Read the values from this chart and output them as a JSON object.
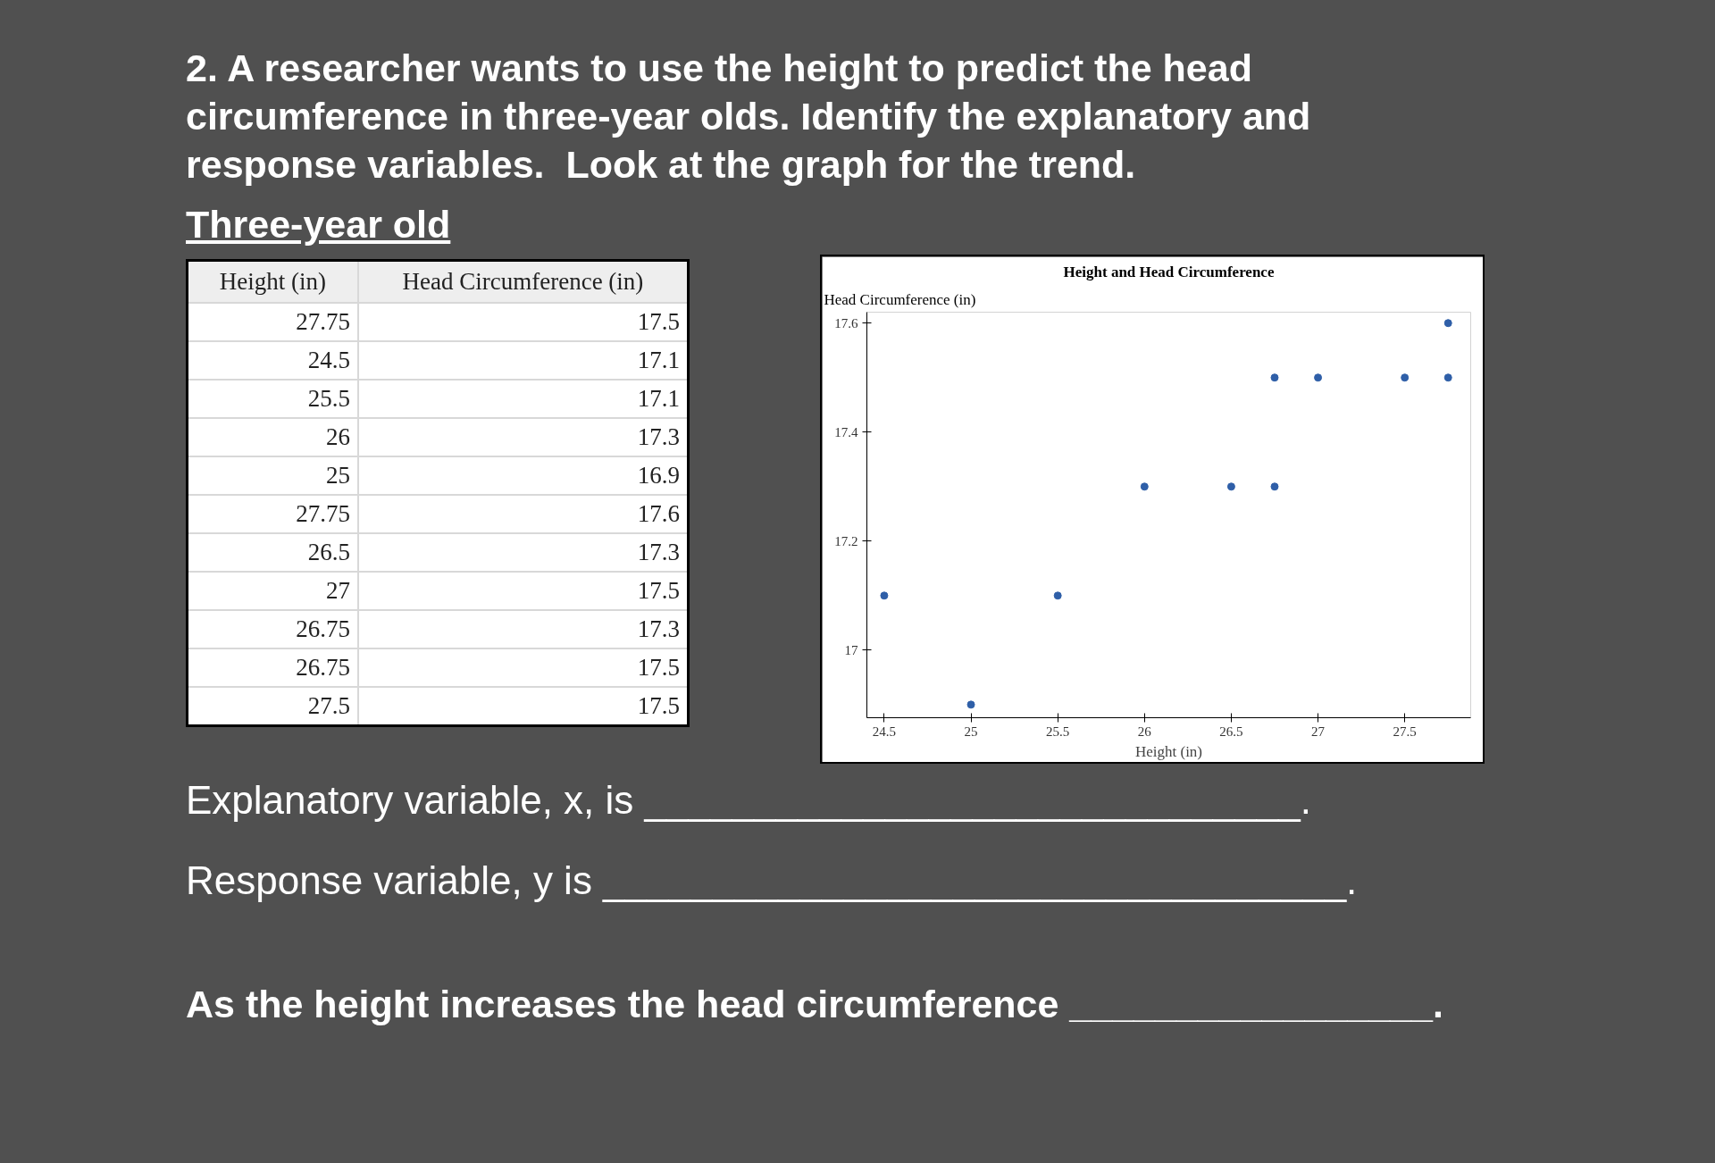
{
  "chart_data": [
    {
      "type": "other",
      "categories": [
        "Height (in)",
        "Head Circumference (in)"
      ],
      "cell_labels": [
        [
          "27.75",
          "17.5"
        ],
        [
          "24.5",
          "17.1"
        ],
        [
          "25.5",
          "17.1"
        ],
        [
          "26",
          "17.3"
        ],
        [
          "25",
          "16.9"
        ],
        [
          "27.75",
          "17.6"
        ],
        [
          "26.5",
          "17.3"
        ],
        [
          "27",
          "17.5"
        ],
        [
          "26.75",
          "17.3"
        ],
        [
          "26.75",
          "17.5"
        ],
        [
          "27.5",
          "17.5"
        ]
      ],
      "annotations": [
        "2. A researcher wants to use the height to predict the head circumference in three-year olds. Identify the explanatory and response variables.  Look at the graph for the trend.",
        "Three-year old",
        "Explanatory variable, x, is ______________________________.",
        "Response variable, y is __________________________________.",
        "As the height increases the head circumference _________________."
      ]
    },
    {
      "type": "scatter",
      "title": "Height and Head Circumference",
      "xlabel": "Height (in)",
      "ylabel": "Head Circumference (in)",
      "x": [
        27.75,
        24.5,
        25.5,
        26,
        25,
        27.75,
        26.5,
        27,
        26.75,
        26.75,
        27.5
      ],
      "values": [
        17.5,
        17.1,
        17.1,
        17.3,
        16.9,
        17.6,
        17.3,
        17.5,
        17.3,
        17.5,
        17.5
      ],
      "color": "#2f5fa8",
      "marker": "circle",
      "grid": false,
      "xlim": [
        24.4,
        27.88
      ],
      "ylim": [
        16.876,
        17.62
      ],
      "xticks": [
        24.5,
        25,
        25.5,
        26,
        26.5,
        27,
        27.5
      ],
      "yticks": [
        17,
        17.2,
        17.4,
        17.6
      ]
    }
  ]
}
